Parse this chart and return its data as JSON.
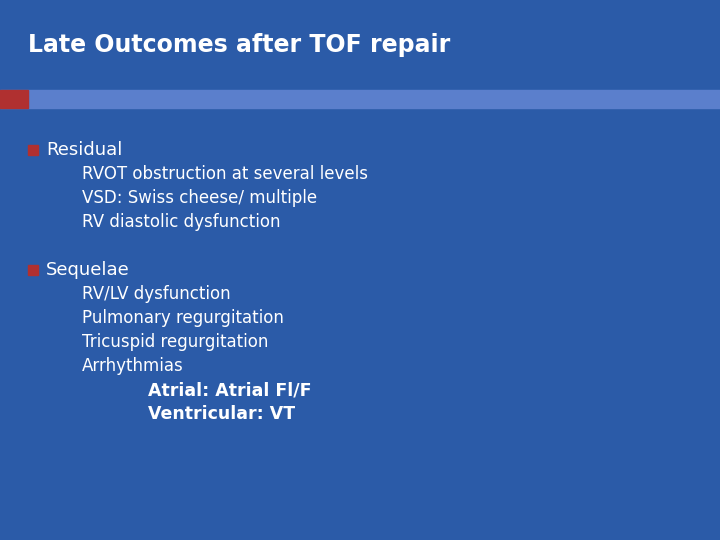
{
  "title": "Late Outcomes after TOF repair",
  "bg_color": "#2B5BA8",
  "title_bg_color": "#2B5BA8",
  "title_text_color": "#FFFFFF",
  "body_text_color": "#FFFFFF",
  "bullet_color": "#B03030",
  "accent_bar_color": "#5B7FCC",
  "red_accent_color": "#B03030",
  "title_fontsize": 17,
  "body_fontsize": 13,
  "sub_fontsize": 12,
  "subsub_fontsize": 12.5,
  "bullet1_label": "Residual",
  "bullet1_subitems": [
    "RVOT obstruction at several levels",
    "VSD: Swiss cheese/ multiple",
    "RV diastolic dysfunction"
  ],
  "bullet2_label": "Sequelae",
  "bullet2_subitems": [
    "RV/LV dysfunction",
    "Pulmonary regurgitation",
    "Tricuspid regurgitation",
    "Arrhythmias"
  ],
  "bullet2_subsubitems": [
    "Atrial: Atrial Fl/F",
    "Ventricular: VT"
  ]
}
